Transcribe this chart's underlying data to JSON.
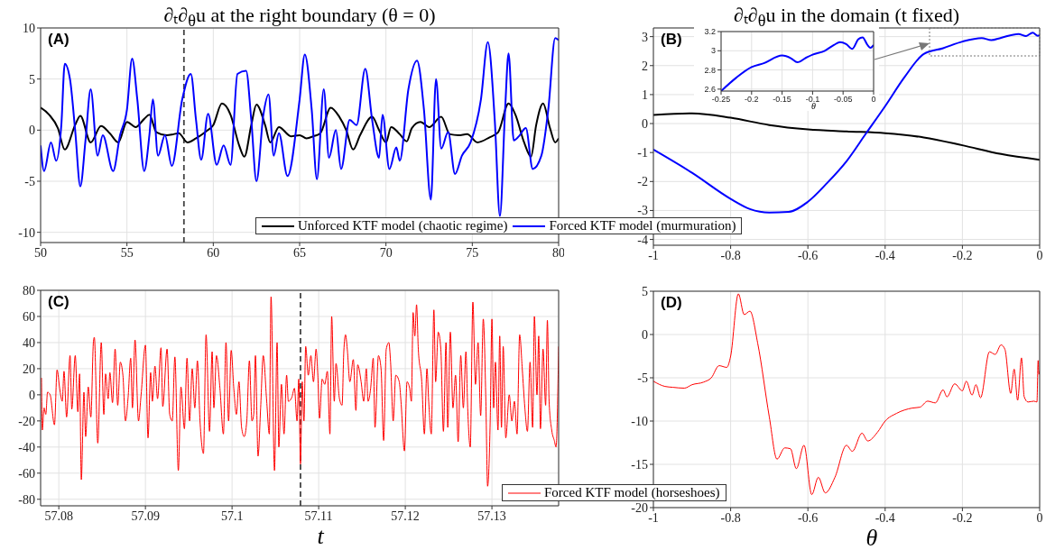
{
  "chart_data": [
    {
      "type": "line",
      "title": "∂ₜ∂$_{θ}$u at the right boundary (θ = 0)",
      "annotations": [
        "(A)"
      ],
      "xlim": [
        50,
        80
      ],
      "xticks": [
        50,
        55,
        60,
        65,
        70,
        75,
        80
      ],
      "ylim": [
        -11,
        10
      ],
      "yticks": [
        -10,
        -5,
        0,
        5,
        10
      ],
      "grid": true,
      "legend": "bottom",
      "ref_lines": [
        {
          "axis": "x",
          "value": 58.3,
          "color": "#444444",
          "line_style": "dashed"
        }
      ],
      "series": [
        {
          "name": "Unforced KTF model (chaotic regime)",
          "color": "#000000",
          "x": [
            50,
            50.5,
            51,
            51.4,
            52,
            52.3,
            52.9,
            53.5,
            54,
            54.5,
            55,
            55.5,
            56,
            56.3,
            56.7,
            57.3,
            57.7,
            58,
            58.5,
            59,
            59.6,
            60,
            60.5,
            61,
            61.5,
            61.8,
            62.2,
            62.5,
            63,
            63.3,
            63.8,
            64.5,
            65,
            65.4,
            65.8,
            66.2,
            66.8,
            67.3,
            67.7,
            68.1,
            68.5,
            69.2,
            69.6,
            70,
            70.3,
            70.8,
            71.2,
            71.5,
            72,
            72.5,
            73.2,
            73.7,
            74.2,
            74.7,
            75.3,
            76,
            76.5,
            77.1,
            77.5,
            78,
            78.4,
            78.7,
            79.1,
            79.5,
            79.8,
            80
          ],
          "values": [
            2.2,
            1.5,
            0.2,
            -1.9,
            0.5,
            1.4,
            -1.2,
            0.4,
            -0.3,
            -1.2,
            0.8,
            0.3,
            1.1,
            1.5,
            -0.2,
            -0.5,
            -0.4,
            -0.3,
            -1.2,
            -0.8,
            -0.1,
            0.5,
            2.6,
            1.5,
            -1.5,
            -2.6,
            0.5,
            2.5,
            0.5,
            -1.2,
            0.3,
            -0.6,
            -0.5,
            -0.8,
            -0.6,
            -0.3,
            2.2,
            1.3,
            0,
            -1.9,
            -0.5,
            1.3,
            0,
            -1.2,
            0.3,
            -0.4,
            -1.1,
            0.2,
            0.8,
            0.3,
            1.3,
            -0.4,
            -0.5,
            -0.4,
            -1.2,
            -0.7,
            -0.2,
            2.6,
            1.5,
            -1.2,
            -2.6,
            0.5,
            2.6,
            0.2,
            -1.2,
            -0.8
          ]
        },
        {
          "name": "Forced KTF model (murmuration)",
          "color": "#0000ff",
          "x": [
            50,
            50.2,
            50.6,
            50.9,
            51.2,
            51.4,
            51.7,
            52,
            52.3,
            52.6,
            52.9,
            53.3,
            53.6,
            54.2,
            54.6,
            55,
            55.3,
            55.6,
            56,
            56.3,
            56.5,
            56.8,
            57.2,
            57.6,
            58.2,
            58.7,
            59,
            59.3,
            59.7,
            60.2,
            60.6,
            61,
            61.4,
            61.9,
            62.2,
            62.5,
            62.9,
            63.2,
            63.5,
            63.8,
            64.3,
            65,
            65.3,
            65.7,
            66,
            66.4,
            66.7,
            67.1,
            67.4,
            67.9,
            68.3,
            68.8,
            69.2,
            69.6,
            69.8,
            70.2,
            70.6,
            70.8,
            71.3,
            71.8,
            72.2,
            72.6,
            72.9,
            73.2,
            73.6,
            74,
            74.4,
            74.9,
            75.5,
            75.9,
            76.3,
            76.6,
            76.9,
            77.1,
            77.4,
            77.7,
            78.1,
            78.5,
            79,
            79.4,
            79.8,
            80
          ],
          "values": [
            -1.5,
            -4,
            -1.2,
            -3,
            0.5,
            6.5,
            5,
            0,
            -5.5,
            -1,
            4,
            -2.5,
            -0.5,
            -4,
            -0.5,
            2,
            7,
            3,
            -4,
            -0.5,
            3,
            -2.5,
            -0.5,
            -3.5,
            3,
            5.5,
            1,
            -2.9,
            1.6,
            -3.4,
            -1.5,
            -3.4,
            5.5,
            5.8,
            1,
            -5,
            1.5,
            3.5,
            -2.5,
            -0.3,
            -4.5,
            3,
            7.4,
            2,
            -4.8,
            4,
            -2.7,
            0,
            -3.8,
            1,
            0.5,
            6,
            1,
            -2.7,
            1.5,
            -3.8,
            -1.7,
            -3,
            4,
            6.8,
            2,
            -6.8,
            5,
            -1.8,
            -0.2,
            -4.3,
            -2.5,
            -1.2,
            3,
            8.6,
            1,
            -8.4,
            2,
            7.5,
            -1,
            -0.6,
            0.2,
            -3.8,
            -2.5,
            2,
            9,
            8.8
          ]
        }
      ]
    },
    {
      "type": "line",
      "title": "∂ₜ∂$_{θ}$u in the domain (t fixed)",
      "annotations": [
        "(B)"
      ],
      "xlim": [
        -1,
        0
      ],
      "xticks": [
        -1,
        -0.8,
        -0.6,
        -0.4,
        -0.2,
        0
      ],
      "ylim": [
        -4.2,
        3.3
      ],
      "yticks": [
        -4,
        -3,
        -2,
        -1,
        0,
        1,
        2,
        3
      ],
      "grid": true,
      "series": [
        {
          "color": "#000000",
          "x": [
            -1,
            -0.9,
            -0.8,
            -0.7,
            -0.6,
            -0.5,
            -0.4,
            -0.3,
            -0.2,
            -0.1,
            0
          ],
          "values": [
            0.3,
            0.35,
            0.2,
            -0.05,
            -0.2,
            -0.27,
            -0.33,
            -0.48,
            -0.75,
            -1.05,
            -1.25
          ]
        },
        {
          "color": "#0000ff",
          "x": [
            -1,
            -0.9,
            -0.8,
            -0.75,
            -0.7,
            -0.65,
            -0.6,
            -0.55,
            -0.5,
            -0.45,
            -0.4,
            -0.35,
            -0.3,
            -0.25,
            -0.2,
            -0.15,
            -0.125,
            -0.1,
            -0.055,
            -0.035,
            -0.018,
            -0.005,
            0
          ],
          "values": [
            -0.9,
            -1.7,
            -2.6,
            -2.95,
            -3.07,
            -3.05,
            -2.7,
            -2.05,
            -1.3,
            -0.35,
            0.6,
            1.6,
            2.4,
            2.6,
            2.83,
            2.95,
            2.88,
            2.96,
            3.09,
            3.02,
            3.14,
            3.03,
            3.06
          ]
        }
      ]
    },
    {
      "type": "line",
      "xlabel": "θ",
      "xlim": [
        -0.25,
        0
      ],
      "xticks": [
        -0.25,
        -0.2,
        -0.15,
        -0.1,
        -0.05,
        0
      ],
      "ylim": [
        2.58,
        3.2
      ],
      "yticks": [
        2.6,
        2.8,
        3,
        3.2
      ],
      "grid": true,
      "series": [
        {
          "color": "#0000ff",
          "x": [
            -0.25,
            -0.225,
            -0.2,
            -0.18,
            -0.15,
            -0.135,
            -0.125,
            -0.11,
            -0.1,
            -0.08,
            -0.065,
            -0.055,
            -0.045,
            -0.035,
            -0.025,
            -0.018,
            -0.01,
            -0.005,
            0
          ],
          "values": [
            2.58,
            2.72,
            2.83,
            2.87,
            2.95,
            2.92,
            2.88,
            2.93,
            2.96,
            3.0,
            3.06,
            3.09,
            3.07,
            3.02,
            3.12,
            3.14,
            3.06,
            3.03,
            3.06
          ]
        }
      ]
    },
    {
      "type": "line",
      "xlabel": "t",
      "annotations": [
        "(C)"
      ],
      "xlim": [
        57.0779,
        57.1377
      ],
      "xticks": [
        57.08,
        57.09,
        57.1,
        57.11,
        57.12,
        57.13
      ],
      "ylim": [
        -85,
        80
      ],
      "yticks": [
        -80,
        -60,
        -40,
        -20,
        0,
        20,
        40,
        60,
        80
      ],
      "grid": true,
      "legend": "bottom",
      "ref_lines": [
        {
          "axis": "x",
          "value": 57.1079,
          "color": "#444444",
          "line_style": "dashed"
        }
      ],
      "series": [
        {
          "name": "Forced KTF model (horseshoes)",
          "color": "#ff0000",
          "x": [
            57.078,
            57.0781,
            57.0783,
            57.0785,
            57.0787,
            57.079,
            57.0795,
            57.0798,
            57.0801,
            57.0804,
            57.0806,
            57.0809,
            57.0813,
            57.0815,
            57.0819,
            57.0822,
            57.0824,
            57.0826,
            57.0829,
            57.0831,
            57.0834,
            57.0837,
            57.084,
            57.0841,
            57.0845,
            57.0849,
            57.0852,
            57.0854,
            57.0857,
            57.0859,
            57.0862,
            57.0865,
            57.0868,
            57.0871,
            57.0874,
            57.0877,
            57.088,
            57.0883,
            57.0885,
            57.0888,
            57.0892,
            57.0895,
            57.09,
            57.0903,
            57.0906,
            57.0908,
            57.0911,
            57.0914,
            57.0918,
            57.092,
            57.0925,
            57.0928,
            57.0931,
            57.0934,
            57.0938,
            57.0941,
            57.0945,
            57.0948,
            57.0951,
            57.0954,
            57.0957,
            57.096,
            57.0963,
            57.0967,
            57.097,
            57.0974,
            57.0977,
            57.0979,
            57.0982,
            57.0986,
            57.099,
            57.0993,
            57.0996,
            57.0999,
            57.1002,
            57.1005,
            57.1008,
            57.1011,
            57.1014,
            57.1017,
            57.102,
            57.1023,
            57.1025,
            57.1027,
            57.103,
            57.1033,
            57.1036,
            57.104,
            57.1043,
            57.1045,
            57.1049,
            57.1052,
            57.1054,
            57.1057,
            57.106,
            57.1063,
            57.1065,
            57.1069,
            57.1072,
            57.1075,
            57.1077,
            57.1079,
            57.1081,
            57.1083,
            57.1085,
            57.1088,
            57.1091,
            57.1094,
            57.1097,
            57.1099,
            57.1101,
            57.1104,
            57.1107,
            57.111,
            57.1113,
            57.1115,
            57.1118,
            57.112,
            57.1124,
            57.1127,
            57.1129,
            57.1131,
            57.1133,
            57.1136,
            57.114,
            57.1143,
            57.1145,
            57.1149,
            57.1152,
            57.1155,
            57.1157,
            57.116,
            57.1163,
            57.1165,
            57.1169,
            57.1172,
            57.1175,
            57.1178,
            57.1181,
            57.1183,
            57.1186,
            57.1189,
            57.1193,
            57.1195,
            57.1199,
            57.1202,
            57.1205,
            57.1207,
            57.1209,
            57.1211,
            57.1213,
            57.1215,
            57.1219,
            57.1222,
            57.1225,
            57.1227,
            57.123,
            57.1233,
            57.1235,
            57.1238,
            57.1241,
            57.1244,
            57.1247,
            57.1249,
            57.1252,
            57.1255,
            57.1258,
            57.1261,
            57.1264,
            57.1267,
            57.127,
            57.1272,
            57.1275,
            57.1278,
            57.1281,
            57.1284,
            57.1287,
            57.129,
            57.1293,
            57.1295,
            57.1298,
            57.13,
            57.1302,
            57.1304,
            57.1307,
            57.1309,
            57.1311,
            57.1313,
            57.1316,
            57.132,
            57.1323,
            57.1326,
            57.1329,
            57.1332,
            57.1335,
            57.1338,
            57.1341,
            57.1344,
            57.1347,
            57.1349,
            57.1352,
            57.1354,
            57.1356,
            57.1359,
            57.1362,
            57.1364,
            57.1366,
            57.1369,
            57.1372,
            57.1374,
            57.1377
          ],
          "values": [
            13,
            -27,
            -10,
            -15,
            2,
            0,
            -23,
            19,
            5,
            -5,
            18,
            -17,
            30,
            -11,
            30,
            -13,
            16,
            -65,
            2,
            -32,
            6,
            -17,
            41,
            44,
            -37,
            40,
            -15,
            16,
            -3,
            17,
            -6,
            35,
            -8,
            25,
            15,
            -20,
            -2,
            28,
            -10,
            42,
            -20,
            0,
            38,
            -33,
            17,
            -5,
            22,
            -3,
            36,
            -9,
            35,
            -15,
            -20,
            29,
            -58,
            6,
            -26,
            28,
            -20,
            20,
            -10,
            26,
            -20,
            -45,
            46,
            -28,
            33,
            -10,
            30,
            5,
            -30,
            40,
            -20,
            34,
            5,
            -15,
            10,
            -25,
            -32,
            -20,
            26,
            -20,
            -15,
            30,
            -47,
            -10,
            30,
            -5,
            -30,
            75,
            -58,
            40,
            -40,
            8,
            -30,
            15,
            -5,
            -2,
            5,
            -20,
            12,
            -53,
            10,
            -20,
            37,
            15,
            30,
            10,
            35,
            15,
            -18,
            12,
            8,
            18,
            -30,
            60,
            -5,
            24,
            -3,
            -8,
            33,
            46,
            35,
            10,
            27,
            -12,
            23,
            10,
            -5,
            20,
            -5,
            5,
            28,
            -25,
            30,
            20,
            -35,
            35,
            40,
            25,
            -20,
            15,
            10,
            -5,
            -43,
            10,
            5,
            -5,
            63,
            45,
            69,
            35,
            10,
            -30,
            20,
            -5,
            -30,
            65,
            10,
            48,
            35,
            -28,
            40,
            -25,
            48,
            -10,
            15,
            -36,
            30,
            -10,
            33,
            -10,
            -40,
            71,
            8,
            40,
            -16,
            58,
            -5,
            -70,
            -20,
            58,
            -10,
            25,
            -27,
            45,
            -25,
            37,
            -33,
            0,
            -20,
            -5,
            -30,
            46,
            20,
            -10,
            -28,
            25,
            -25,
            60,
            0,
            45,
            -26,
            35,
            -8,
            57,
            -5,
            -27,
            -35,
            -40,
            37
          ]
        }
      ]
    },
    {
      "type": "line",
      "xlabel": "θ",
      "annotations": [
        "(D)"
      ],
      "xlim": [
        -1,
        0
      ],
      "xticks": [
        -1,
        -0.8,
        -0.6,
        -0.4,
        -0.2,
        0
      ],
      "ylim": [
        -20,
        5
      ],
      "yticks": [
        -20,
        -15,
        -10,
        -5,
        0,
        5
      ],
      "grid": true,
      "series": [
        {
          "color": "#ff0000",
          "x": [
            -1,
            -0.97,
            -0.95,
            -0.92,
            -0.9,
            -0.87,
            -0.85,
            -0.83,
            -0.81,
            -0.8,
            -0.78,
            -0.765,
            -0.75,
            -0.73,
            -0.7,
            -0.68,
            -0.66,
            -0.645,
            -0.63,
            -0.61,
            -0.59,
            -0.573,
            -0.555,
            -0.53,
            -0.5,
            -0.485,
            -0.46,
            -0.445,
            -0.42,
            -0.4,
            -0.37,
            -0.33,
            -0.31,
            -0.29,
            -0.27,
            -0.25,
            -0.24,
            -0.22,
            -0.2,
            -0.19,
            -0.175,
            -0.165,
            -0.153,
            -0.13,
            -0.115,
            -0.1,
            -0.09,
            -0.075,
            -0.066,
            -0.057,
            -0.047,
            -0.04,
            -0.03,
            -0.015,
            -0.007,
            -0.004,
            -0.002,
            0
          ],
          "values": [
            -5.4,
            -6,
            -6.1,
            -6.2,
            -5.8,
            -5.5,
            -5,
            -3.6,
            -3.8,
            -2.5,
            4.7,
            2.3,
            2.7,
            -1,
            -9.5,
            -14.4,
            -13.1,
            -13.2,
            -15.5,
            -12.8,
            -18.5,
            -16.5,
            -18.3,
            -16.5,
            -12.8,
            -13.5,
            -11.4,
            -12.3,
            -11.3,
            -10,
            -9.1,
            -8.5,
            -8.4,
            -7.7,
            -7.9,
            -6.4,
            -7.2,
            -5.7,
            -6.5,
            -5.4,
            -7,
            -5.8,
            -7.3,
            -2,
            -2.3,
            -1.2,
            -1.7,
            -6.8,
            -4,
            -7.6,
            -2.7,
            -7.2,
            -7.8,
            -7.7,
            -7.8,
            -3,
            -4.6,
            -4.2
          ]
        }
      ]
    }
  ]
}
